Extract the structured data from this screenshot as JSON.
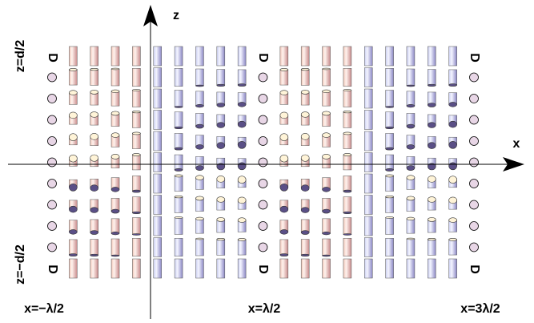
{
  "axes": {
    "z_label": "z",
    "x_label": "x"
  },
  "z_labels": {
    "top": "z=d/2",
    "bottom": "z=−d/2"
  },
  "x_labels": [
    "x=−λ/2",
    "x=λ/2",
    "x=3λ/2"
  ],
  "defects": {
    "top": [
      "D",
      "D",
      "D"
    ],
    "bottom": [
      "D",
      "D",
      "D"
    ]
  }
}
